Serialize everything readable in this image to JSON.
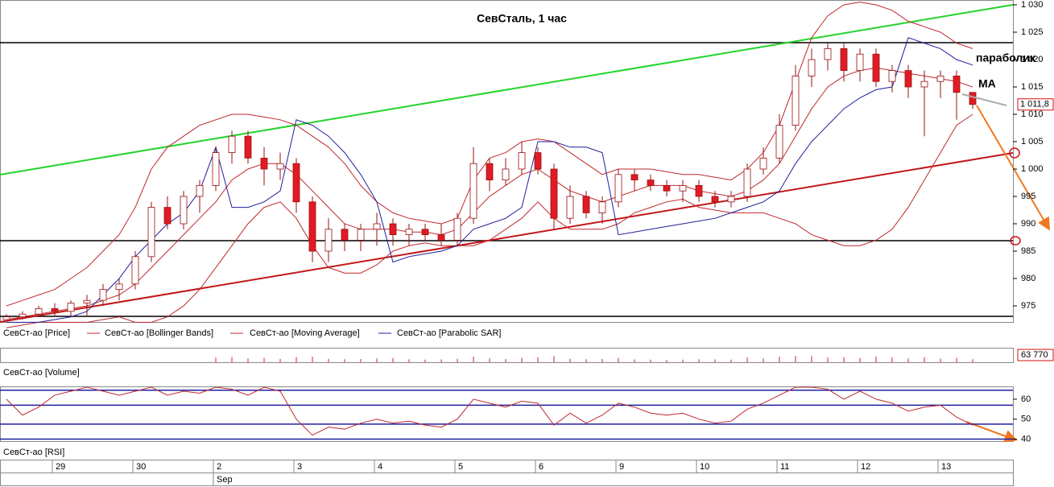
{
  "chart_data": {
    "type": "candlestick",
    "title": "СевСталь,  1 час",
    "ylim": [
      972.5,
      1030.5
    ],
    "yticks": [
      {
        "value": 1030,
        "label": "1 030"
      },
      {
        "value": 1025,
        "label": "1 025"
      },
      {
        "value": 1020,
        "label": "1 020"
      },
      {
        "value": 1015,
        "label": "1 015"
      },
      {
        "value": 1010,
        "label": "1 010"
      },
      {
        "value": 1005,
        "label": "1 005"
      },
      {
        "value": 1000,
        "label": "1 000"
      },
      995,
      990,
      985,
      980,
      975
    ],
    "last_price": {
      "value": 1011.8,
      "label": "1 011,8"
    },
    "date_ticks": [
      {
        "value": 3,
        "label": "29"
      },
      {
        "value": 8,
        "label": "30"
      },
      {
        "value": 13,
        "label": "2"
      },
      {
        "value": 18,
        "label": "3"
      },
      {
        "value": 23,
        "label": "4"
      },
      {
        "value": 28,
        "label": "5"
      },
      {
        "value": 33,
        "label": "6"
      },
      {
        "value": 38,
        "label": "9"
      },
      {
        "value": 43,
        "label": "10"
      },
      {
        "value": 48,
        "label": "11"
      },
      {
        "value": 53,
        "label": "12"
      },
      {
        "value": 58,
        "label": "13"
      }
    ],
    "month_label": {
      "value": 13,
      "label": "Sep"
    },
    "annotations": [
      "параболик",
      "MA"
    ],
    "price": {
      "name": "СевСт-ао [Price]",
      "up_color": "#ffffff",
      "down_color": "#e01b24",
      "edge_color": "#9a1010",
      "open": [
        972.5,
        973,
        973.5,
        974.5,
        974,
        975.5,
        976,
        978,
        979,
        984,
        993,
        990,
        995,
        997,
        1003,
        1006,
        1002,
        1000,
        1001,
        994,
        985,
        989,
        987,
        989,
        990,
        988,
        989,
        988,
        987,
        991,
        1001,
        998,
        1000,
        1003,
        1000,
        991,
        995,
        992,
        994,
        999,
        998,
        997,
        996,
        997,
        995,
        994,
        995,
        1000,
        1002,
        1008,
        1017,
        1020,
        1022,
        1018,
        1021,
        1016,
        1018,
        1015,
        1016,
        1017,
        1014
      ],
      "high": [
        973.5,
        974,
        975,
        975.5,
        976,
        977,
        979,
        980,
        985,
        994,
        995,
        996,
        998,
        1004,
        1007,
        1007,
        1004,
        1003,
        1002,
        995,
        991,
        990,
        990,
        992,
        991,
        990,
        990,
        990,
        992,
        1004,
        1002,
        1002,
        1005,
        1004,
        1001,
        997,
        996,
        995,
        1000,
        1000,
        999,
        998,
        998,
        998,
        996,
        996,
        1001,
        1004,
        1010,
        1019,
        1022,
        1023,
        1023,
        1022,
        1022,
        1019,
        1019,
        1018,
        1018,
        1018,
        1014
      ],
      "low": [
        972.5,
        972.5,
        973,
        973,
        973,
        973,
        975,
        976,
        978,
        983,
        989,
        989,
        992,
        996,
        1001,
        1001,
        997,
        998,
        992,
        983,
        983,
        985,
        985,
        986,
        986,
        986,
        987,
        986,
        986,
        990,
        996,
        997,
        999,
        999,
        989,
        990,
        991,
        990,
        993,
        996,
        996,
        995,
        994,
        994,
        993,
        993,
        994,
        999,
        1001,
        1007,
        1015,
        1018,
        1016,
        1016,
        1015,
        1014,
        1013,
        1006,
        1013,
        1009,
        1011
      ],
      "close": [
        973,
        973.5,
        974.5,
        974,
        975.5,
        976,
        978,
        979,
        984,
        993,
        990,
        995,
        997,
        1003,
        1006,
        1002,
        1000,
        1001,
        994,
        985,
        989,
        987,
        989,
        990,
        988,
        989,
        988,
        987,
        991,
        1001,
        998,
        1000,
        1003,
        1000,
        991,
        995,
        992,
        994,
        999,
        998,
        997,
        996,
        997,
        995,
        994,
        995,
        1000,
        1002,
        1008,
        1017,
        1020,
        1022,
        1018,
        1021,
        1016,
        1018,
        1015,
        1016,
        1017,
        1014,
        1011.8
      ]
    },
    "series": [
      {
        "name": "СевСт-ао [Bollinger Bands]",
        "color": "#c0282d",
        "upper": [
          975,
          976,
          977,
          978,
          980,
          982,
          985,
          988,
          993,
          1000,
          1004,
          1006,
          1008,
          1009,
          1010,
          1010,
          1009.5,
          1009,
          1008,
          1006,
          1004,
          1001,
          997,
          994,
          992,
          991,
          990.5,
          990,
          991,
          998,
          1002,
          1003,
          1005,
          1005.5,
          1005,
          1003,
          1001,
          999,
          1000,
          1000,
          1000,
          999.5,
          999,
          999,
          998.5,
          998,
          1000,
          1003,
          1008,
          1016,
          1024,
          1028,
          1030,
          1030.5,
          1030,
          1029,
          1027,
          1026,
          1025,
          1023,
          1022
        ],
        "lower": [
          971,
          971.5,
          972,
          972,
          972,
          972,
          972.5,
          973,
          972,
          972,
          973,
          975,
          978,
          982,
          986,
          990,
          993,
          994,
          991,
          986,
          982,
          981,
          981,
          982.5,
          985,
          986,
          986.5,
          986,
          986,
          986,
          987,
          989,
          991,
          994,
          991,
          989,
          989,
          989,
          990,
          992,
          993,
          994,
          994.5,
          993,
          992.5,
          992,
          992,
          992,
          991,
          990,
          988,
          987,
          986,
          986,
          987,
          989,
          993,
          998,
          1003,
          1008,
          1010
        ]
      },
      {
        "name": "СевСт-ао [Moving Average]",
        "color": "#c0282d",
        "values": [
          972.5,
          973,
          973.5,
          974,
          974.5,
          975,
          976,
          977,
          979,
          982,
          985,
          988,
          991,
          994,
          998,
          1000,
          1001,
          1001,
          999,
          996,
          993,
          990,
          989,
          989,
          989,
          988.5,
          988.5,
          988,
          989,
          992,
          995,
          997,
          999,
          1000,
          998,
          996,
          995,
          994,
          995,
          996,
          997,
          997,
          997,
          996,
          995.5,
          995,
          996,
          998,
          1001,
          1006,
          1011,
          1015,
          1017,
          1018,
          1018.5,
          1018,
          1017.5,
          1017,
          1016.5,
          1016,
          1015
        ]
      },
      {
        "name": "СевСт-ао [Parabolic SAR]",
        "color": "#1f1f9e",
        "values": [
          972,
          972,
          972,
          972.5,
          973,
          974,
          977,
          980,
          984,
          987,
          990,
          992,
          996,
          1004,
          993,
          993,
          994,
          996,
          1009,
          1008,
          1006,
          1003,
          999,
          994,
          983,
          984,
          984.5,
          985,
          986,
          989,
          990,
          991,
          993,
          1005,
          1005,
          1004,
          1004,
          1003,
          988,
          988.5,
          989,
          989.5,
          990,
          990.5,
          991,
          992,
          993,
          994,
          996,
          1001,
          1005,
          1008,
          1011,
          1013,
          1014.5,
          1015,
          1024,
          1023,
          1022,
          1020,
          1019
        ]
      }
    ],
    "volume": {
      "name": "СевСт-ао [Volume]",
      "color": "#c0282d",
      "ylim": [
        0,
        63770
      ],
      "yticks": [
        {
          "value": 63770,
          "label": "63 770"
        }
      ],
      "values": [
        null,
        null,
        null,
        null,
        null,
        null,
        null,
        null,
        null,
        null,
        null,
        null,
        null,
        22000,
        25000,
        18000,
        20000,
        15000,
        24000,
        26000,
        16000,
        14000,
        15000,
        18000,
        20000,
        14000,
        12000,
        13000,
        16000,
        26000,
        18000,
        15000,
        20000,
        24000,
        28000,
        16000,
        14000,
        15000,
        20000,
        13000,
        12000,
        11000,
        12000,
        14000,
        13000,
        12000,
        22000,
        18000,
        26000,
        30000,
        28000,
        22000,
        24000,
        20000,
        26000,
        22000,
        18000,
        24000,
        16000,
        20000,
        14000
      ]
    },
    "rsi": {
      "name": "СевСт-ао [RSI]",
      "color": "#c0282d",
      "level_color": "#1f1f9e",
      "ylim": [
        39,
        66
      ],
      "yticks": [
        40,
        50,
        60
      ],
      "levels": [
        64.5,
        57,
        47.5,
        40
      ],
      "values": [
        60,
        52,
        56,
        62,
        64,
        66,
        64,
        62,
        64,
        66,
        62,
        64,
        63,
        66,
        65,
        62,
        66,
        64,
        50,
        42,
        46,
        45,
        48,
        50,
        48,
        49,
        47,
        46,
        50,
        60,
        58,
        56,
        59,
        58,
        47,
        53,
        48,
        52,
        58,
        56,
        53,
        52,
        53,
        50,
        48,
        49,
        55,
        58,
        62,
        66,
        66,
        65,
        60,
        64,
        60,
        58,
        54,
        56,
        57,
        51,
        47
      ]
    }
  }
}
